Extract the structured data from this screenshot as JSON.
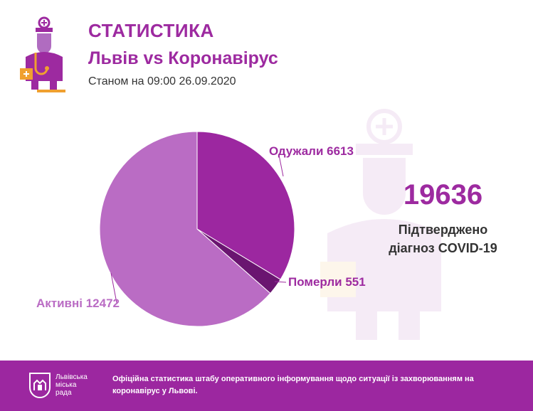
{
  "header": {
    "title": "СТАТИСТИКА",
    "subtitle": "Львів vs Коронавірус",
    "as_of": "Станом на 09:00 26.09.2020"
  },
  "summary": {
    "total": "19636",
    "confirmed_line1": "Підтверджено",
    "confirmed_line2": "діагноз COVID-19"
  },
  "footer": {
    "org_line1": "Львівська",
    "org_line2": "міська",
    "org_line3": "рада",
    "text": "Офіційна статистика штабу оперативного інформування щодо ситуації із захворюванням на коронавірус у Львові."
  },
  "colors": {
    "brand": "#9d2aa0",
    "recovered": "#9c27a0",
    "deaths": "#6a1570",
    "active": "#ba6cc4",
    "footer": "#9c27a0"
  },
  "chart_data": {
    "type": "pie",
    "slices": [
      {
        "key": "recovered",
        "label": "Одужали 6613",
        "value": 6613
      },
      {
        "key": "deaths",
        "label": "Померли 551",
        "value": 551
      },
      {
        "key": "active",
        "label": "Активні 12472",
        "value": 12472
      }
    ]
  }
}
